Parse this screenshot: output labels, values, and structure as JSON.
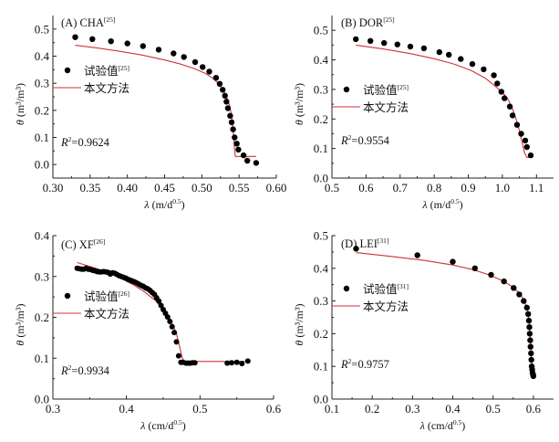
{
  "colors": {
    "fit_line": "#d0323c",
    "points": "#000000",
    "axis": "#222222"
  },
  "legend": {
    "points_label": "试验值",
    "line_label": "本文方法"
  },
  "chart_data": [
    {
      "id": "A",
      "type": "scatter",
      "title": "(A) CHA",
      "title_sup": "[25]",
      "legend_sup": "[25]",
      "r2_text": "=0.9624",
      "xlabel_main": "λ (m/d",
      "xlabel_sup": "0.5",
      "xlabel_close": ")",
      "ylabel": "θ (m³/m³)",
      "xlim": [
        0.3,
        0.6
      ],
      "ylim": [
        -0.05,
        0.55
      ],
      "xticks": [
        0.3,
        0.35,
        0.4,
        0.45,
        0.5,
        0.55,
        0.6
      ],
      "xtick_labels": [
        "0.30",
        "0.35",
        "0.40",
        "0.45",
        "0.50",
        "0.55",
        "0.60"
      ],
      "yticks": [
        0.0,
        0.1,
        0.2,
        0.3,
        0.4,
        0.5
      ],
      "ytick_labels": [
        "0.0",
        "0.1",
        "0.2",
        "0.3",
        "0.4",
        "0.5"
      ],
      "points": {
        "x": [
          0.33,
          0.353,
          0.378,
          0.4,
          0.421,
          0.442,
          0.462,
          0.476,
          0.491,
          0.501,
          0.51,
          0.519,
          0.524,
          0.528,
          0.531,
          0.533,
          0.535,
          0.538,
          0.54,
          0.542,
          0.544,
          0.547,
          0.549,
          0.556,
          0.561,
          0.573
        ],
        "y": [
          0.47,
          0.463,
          0.455,
          0.447,
          0.437,
          0.424,
          0.41,
          0.397,
          0.378,
          0.36,
          0.343,
          0.32,
          0.298,
          0.276,
          0.254,
          0.232,
          0.208,
          0.18,
          0.156,
          0.13,
          0.1,
          0.077,
          0.055,
          0.034,
          0.014,
          0.006
        ]
      },
      "fit": {
        "x": [
          0.33,
          0.36,
          0.39,
          0.42,
          0.45,
          0.47,
          0.49,
          0.505,
          0.515,
          0.522,
          0.528,
          0.533,
          0.537,
          0.54,
          0.542,
          0.543,
          0.544,
          0.545,
          0.547,
          0.573
        ],
        "y": [
          0.44,
          0.43,
          0.418,
          0.404,
          0.386,
          0.372,
          0.354,
          0.336,
          0.318,
          0.3,
          0.276,
          0.25,
          0.22,
          0.18,
          0.13,
          0.09,
          0.05,
          0.03,
          0.03,
          0.03
        ]
      }
    },
    {
      "id": "B",
      "type": "scatter",
      "title": "(B) DOR",
      "title_sup": "[25]",
      "legend_sup": "[25]",
      "r2_text": "=0.9554",
      "xlabel_main": "λ (m/d",
      "xlabel_sup": "0.5",
      "xlabel_close": ")",
      "ylabel": "θ (m³/m³)",
      "xlim": [
        0.5,
        1.15
      ],
      "ylim": [
        0.0,
        0.55
      ],
      "xticks": [
        0.5,
        0.6,
        0.7,
        0.8,
        0.9,
        1.0,
        1.1
      ],
      "xtick_labels": [
        "0.5",
        "0.6",
        "0.7",
        "0.8",
        "0.9",
        "1.0",
        "1.1"
      ],
      "yticks": [
        0.0,
        0.1,
        0.2,
        0.3,
        0.4,
        0.5
      ],
      "ytick_labels": [
        "0.0",
        "0.1",
        "0.2",
        "0.3",
        "0.4",
        "0.5"
      ],
      "points": {
        "x": [
          0.57,
          0.613,
          0.653,
          0.692,
          0.73,
          0.77,
          0.815,
          0.843,
          0.878,
          0.912,
          0.945,
          0.975,
          0.985,
          0.997,
          1.006,
          1.022,
          1.03,
          1.043,
          1.055,
          1.067,
          1.072,
          1.083
        ],
        "y": [
          0.47,
          0.464,
          0.457,
          0.452,
          0.445,
          0.439,
          0.426,
          0.417,
          0.403,
          0.386,
          0.368,
          0.348,
          0.32,
          0.292,
          0.27,
          0.242,
          0.212,
          0.18,
          0.15,
          0.127,
          0.105,
          0.077
        ]
      },
      "fit": {
        "x": [
          0.57,
          0.65,
          0.73,
          0.8,
          0.86,
          0.91,
          0.95,
          0.98,
          1.0,
          1.015,
          1.028,
          1.04,
          1.05,
          1.058,
          1.065,
          1.072,
          1.083
        ],
        "y": [
          0.45,
          0.437,
          0.421,
          0.404,
          0.385,
          0.363,
          0.338,
          0.31,
          0.29,
          0.27,
          0.24,
          0.2,
          0.16,
          0.12,
          0.085,
          0.07,
          0.07
        ]
      }
    },
    {
      "id": "C",
      "type": "scatter",
      "title": "(C) XF",
      "title_sup": "[26]",
      "legend_sup": "[26]",
      "r2_text": "=0.9934",
      "xlabel_main": "λ (cm/d",
      "xlabel_sup": "0.5",
      "xlabel_close": ")",
      "ylabel": "θ (m³/m³)",
      "xlim": [
        0.3,
        0.6
      ],
      "ylim": [
        0.0,
        0.4
      ],
      "xticks": [
        0.3,
        0.4,
        0.5,
        0.6
      ],
      "xtick_labels": [
        "0.3",
        "0.4",
        "0.5",
        "0.6"
      ],
      "yticks": [
        0.0,
        0.1,
        0.2,
        0.3,
        0.4
      ],
      "ytick_labels": [
        "0.0",
        "0.1",
        "0.2",
        "0.3",
        "0.4"
      ],
      "points": {
        "x": [
          0.333,
          0.336,
          0.339,
          0.342,
          0.345,
          0.348,
          0.351,
          0.354,
          0.357,
          0.36,
          0.363,
          0.366,
          0.369,
          0.372,
          0.375,
          0.378,
          0.381,
          0.384,
          0.387,
          0.39,
          0.393,
          0.396,
          0.399,
          0.402,
          0.405,
          0.408,
          0.411,
          0.414,
          0.417,
          0.42,
          0.423,
          0.426,
          0.429,
          0.432,
          0.435,
          0.438,
          0.441,
          0.444,
          0.447,
          0.45,
          0.453,
          0.456,
          0.459,
          0.462,
          0.465,
          0.468,
          0.471,
          0.474,
          0.477,
          0.481,
          0.484,
          0.487,
          0.49,
          0.493,
          0.537,
          0.543,
          0.55,
          0.557,
          0.565
        ],
        "y": [
          0.32,
          0.319,
          0.318,
          0.318,
          0.32,
          0.318,
          0.317,
          0.315,
          0.314,
          0.312,
          0.311,
          0.311,
          0.312,
          0.311,
          0.31,
          0.306,
          0.309,
          0.308,
          0.305,
          0.302,
          0.3,
          0.298,
          0.296,
          0.293,
          0.291,
          0.289,
          0.287,
          0.284,
          0.281,
          0.278,
          0.276,
          0.272,
          0.27,
          0.266,
          0.261,
          0.256,
          0.248,
          0.24,
          0.229,
          0.219,
          0.21,
          0.201,
          0.19,
          0.177,
          0.163,
          0.14,
          0.106,
          0.09,
          0.09,
          0.088,
          0.088,
          0.088,
          0.089,
          0.089,
          0.088,
          0.089,
          0.09,
          0.087,
          0.093
        ]
      },
      "fit": {
        "x": [
          0.333,
          0.35,
          0.37,
          0.39,
          0.41,
          0.425,
          0.44,
          0.452,
          0.462,
          0.468,
          0.472,
          0.476,
          0.479,
          0.5,
          0.54,
          0.565
        ],
        "y": [
          0.334,
          0.325,
          0.313,
          0.298,
          0.279,
          0.262,
          0.24,
          0.214,
          0.186,
          0.16,
          0.13,
          0.1,
          0.092,
          0.092,
          0.092,
          0.092
        ]
      }
    },
    {
      "id": "D",
      "type": "scatter",
      "title": "(D) LEI",
      "title_sup": "[31]",
      "legend_sup": "[31]",
      "r2_text": "=0.9757",
      "xlabel_main": "λ (cm/d",
      "xlabel_sup": "0.5",
      "xlabel_close": ")",
      "ylabel": "θ (m³/m³)",
      "xlim": [
        0.1,
        0.65
      ],
      "ylim": [
        0.0,
        0.5
      ],
      "xticks": [
        0.1,
        0.2,
        0.3,
        0.4,
        0.5,
        0.6
      ],
      "xtick_labels": [
        "0.1",
        "0.2",
        "0.3",
        "0.4",
        "0.5",
        "0.6"
      ],
      "yticks": [
        0.0,
        0.1,
        0.2,
        0.3,
        0.4,
        0.5
      ],
      "ytick_labels": [
        "0.0",
        "0.1",
        "0.2",
        "0.3",
        "0.4",
        "0.5"
      ],
      "points": {
        "x": [
          0.16,
          0.312,
          0.4,
          0.455,
          0.495,
          0.527,
          0.551,
          0.565,
          0.576,
          0.584,
          0.587,
          0.589,
          0.59,
          0.591,
          0.592,
          0.593,
          0.594,
          0.595,
          0.596,
          0.597,
          0.598,
          0.599,
          0.6
        ],
        "y": [
          0.46,
          0.44,
          0.42,
          0.4,
          0.38,
          0.36,
          0.34,
          0.32,
          0.3,
          0.28,
          0.26,
          0.24,
          0.22,
          0.2,
          0.18,
          0.16,
          0.14,
          0.12,
          0.1,
          0.09,
          0.08,
          0.075,
          0.07
        ]
      },
      "fit": {
        "x": [
          0.16,
          0.25,
          0.33,
          0.4,
          0.45,
          0.49,
          0.52,
          0.545,
          0.562,
          0.574,
          0.582,
          0.587,
          0.59,
          0.592,
          0.594,
          0.596,
          0.598
        ],
        "y": [
          0.448,
          0.436,
          0.424,
          0.41,
          0.396,
          0.38,
          0.364,
          0.346,
          0.328,
          0.308,
          0.285,
          0.26,
          0.23,
          0.19,
          0.15,
          0.11,
          0.072
        ]
      }
    }
  ]
}
